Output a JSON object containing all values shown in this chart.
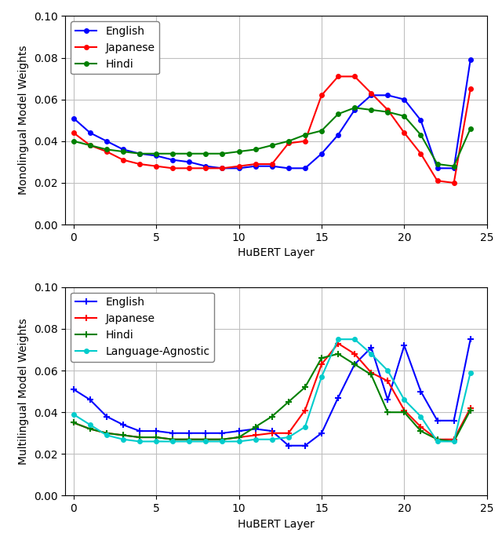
{
  "x": [
    0,
    1,
    2,
    3,
    4,
    5,
    6,
    7,
    8,
    9,
    10,
    11,
    12,
    13,
    14,
    15,
    16,
    17,
    18,
    19,
    20,
    21,
    22,
    23,
    24
  ],
  "mono_english": [
    0.051,
    0.044,
    0.04,
    0.036,
    0.034,
    0.033,
    0.031,
    0.03,
    0.028,
    0.027,
    0.027,
    0.028,
    0.028,
    0.027,
    0.027,
    0.034,
    0.043,
    0.055,
    0.062,
    0.062,
    0.06,
    0.05,
    0.027,
    0.027,
    0.079
  ],
  "mono_japanese": [
    0.044,
    0.038,
    0.035,
    0.031,
    0.029,
    0.028,
    0.027,
    0.027,
    0.027,
    0.027,
    0.028,
    0.029,
    0.029,
    0.039,
    0.04,
    0.062,
    0.071,
    0.071,
    0.063,
    0.055,
    0.044,
    0.034,
    0.021,
    0.02,
    0.065
  ],
  "mono_hindi": [
    0.04,
    0.038,
    0.036,
    0.035,
    0.034,
    0.034,
    0.034,
    0.034,
    0.034,
    0.034,
    0.035,
    0.036,
    0.038,
    0.04,
    0.043,
    0.045,
    0.053,
    0.056,
    0.055,
    0.054,
    0.052,
    0.043,
    0.029,
    0.028,
    0.046
  ],
  "multi_english": [
    0.051,
    0.046,
    0.038,
    0.034,
    0.031,
    0.031,
    0.03,
    0.03,
    0.03,
    0.03,
    0.031,
    0.032,
    0.031,
    0.024,
    0.024,
    0.03,
    0.047,
    0.063,
    0.071,
    0.046,
    0.072,
    0.05,
    0.036,
    0.036,
    0.075
  ],
  "multi_japanese": [
    0.035,
    0.032,
    0.03,
    0.029,
    0.028,
    0.028,
    0.027,
    0.027,
    0.027,
    0.027,
    0.028,
    0.029,
    0.03,
    0.03,
    0.041,
    0.063,
    0.073,
    0.068,
    0.059,
    0.055,
    0.041,
    0.033,
    0.027,
    0.027,
    0.042
  ],
  "multi_hindi": [
    0.035,
    0.032,
    0.03,
    0.029,
    0.028,
    0.028,
    0.027,
    0.027,
    0.027,
    0.027,
    0.028,
    0.033,
    0.038,
    0.045,
    0.052,
    0.066,
    0.068,
    0.063,
    0.058,
    0.04,
    0.04,
    0.031,
    0.027,
    0.026,
    0.041
  ],
  "multi_agnostic": [
    0.039,
    0.034,
    0.029,
    0.027,
    0.026,
    0.026,
    0.026,
    0.026,
    0.026,
    0.026,
    0.026,
    0.027,
    0.027,
    0.028,
    0.033,
    0.057,
    0.075,
    0.075,
    0.068,
    0.06,
    0.046,
    0.038,
    0.026,
    0.026,
    0.059
  ],
  "mono_ylabel": "Monolingual Model Weights",
  "multi_ylabel": "Multilingual Model Weights",
  "xlabel": "HuBERT Layer",
  "ylim": [
    0.0,
    0.1
  ],
  "yticks": [
    0.0,
    0.02,
    0.04,
    0.06,
    0.08,
    0.1
  ],
  "color_english": "#0000ff",
  "color_japanese": "#ff0000",
  "color_hindi": "#008000",
  "color_agnostic": "#00cccc"
}
